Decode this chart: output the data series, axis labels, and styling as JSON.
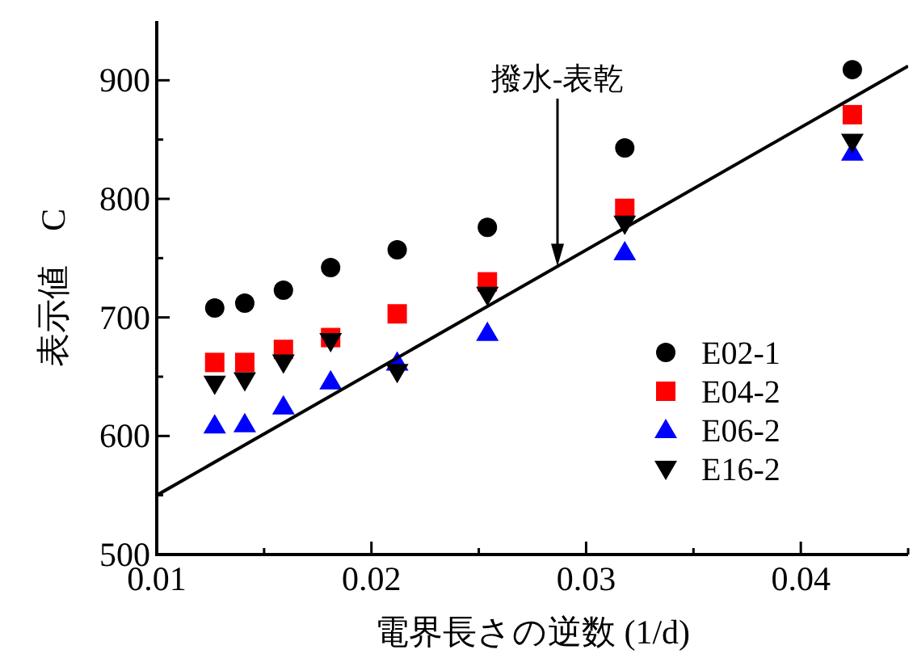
{
  "chart_data": {
    "type": "scatter",
    "xlabel": "電界長さの逆数 (1/d)",
    "ylabel": "表示値　C",
    "xlim": [
      0.01,
      0.045
    ],
    "ylim": [
      500,
      950
    ],
    "xticks": [
      0.01,
      {
        "value": 0.015,
        "label": null
      },
      0.02,
      {
        "value": 0.025,
        "label": null
      },
      0.03,
      {
        "value": 0.035,
        "label": null
      },
      0.04,
      {
        "value": 0.045,
        "label": null
      }
    ],
    "yticks": [
      500,
      {
        "value": 550,
        "label": null
      },
      600,
      {
        "value": 650,
        "label": null
      },
      700,
      {
        "value": 750,
        "label": null
      },
      800,
      {
        "value": 850,
        "label": null
      },
      900
    ],
    "x": [
      0.0127,
      0.0141,
      0.0159,
      0.0181,
      0.0212,
      0.0254,
      0.0318,
      0.0424
    ],
    "legend": "bottom right",
    "grid": false,
    "annotations": [
      "撥水-表乾"
    ],
    "series": [
      {
        "name": "E02-1",
        "color": "#000000",
        "marker": "circle",
        "values": [
          708,
          712,
          723,
          742,
          757,
          776,
          843,
          909
        ]
      },
      {
        "name": "E04-2",
        "color": "#ff0000",
        "marker": "square",
        "values": [
          662,
          662,
          673,
          683,
          703,
          730,
          792,
          871
        ]
      },
      {
        "name": "E06-2",
        "color": "#0000ff",
        "marker": "triangle",
        "values": [
          609,
          610,
          625,
          646,
          662,
          687,
          755,
          839
        ]
      },
      {
        "name": "E16-2",
        "color": "#000000",
        "marker": "triangle-down",
        "values": [
          644,
          647,
          662,
          680,
          654,
          719,
          779,
          848
        ]
      },
      {
        "type": "line",
        "color": "#000000",
        "marker": "none",
        "x": [
          0.01,
          0.045
        ],
        "values": [
          550,
          912
        ]
      }
    ]
  }
}
